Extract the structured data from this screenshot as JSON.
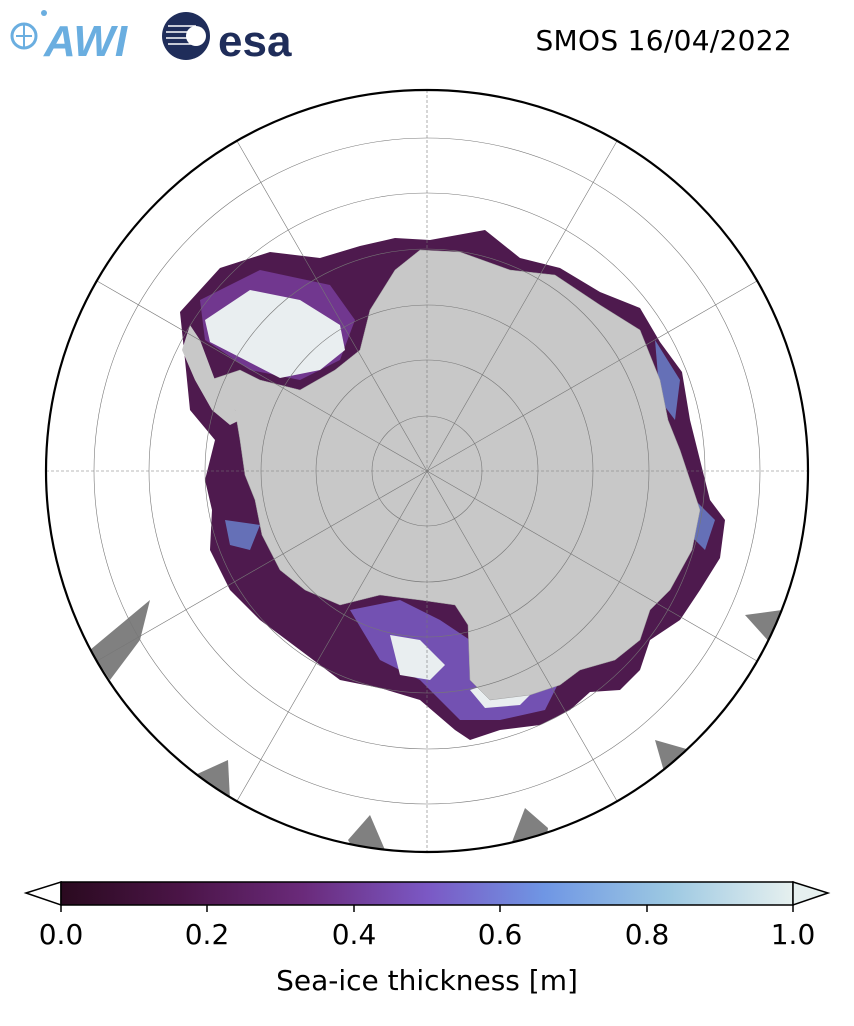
{
  "header": {
    "title": "SMOS 16/04/2022",
    "logo_awi": "AWI",
    "logo_esa": "esa"
  },
  "map": {
    "projection": "south-polar-stereographic",
    "land_color": "#c8c8c8",
    "missing_data_color": "#808080",
    "ocean_color": "#ffffff"
  },
  "colorbar": {
    "label": "Sea-ice thickness [m]",
    "vmin": 0.0,
    "vmax": 1.0,
    "ticks": [
      "0.0",
      "0.2",
      "0.4",
      "0.6",
      "0.8",
      "1.0"
    ],
    "colormap": [
      "#2a0a1f",
      "#4a1446",
      "#6a2a7a",
      "#7b58c4",
      "#6f96e4",
      "#9cc8e2",
      "#e6f0ef"
    ],
    "extend": "both"
  }
}
